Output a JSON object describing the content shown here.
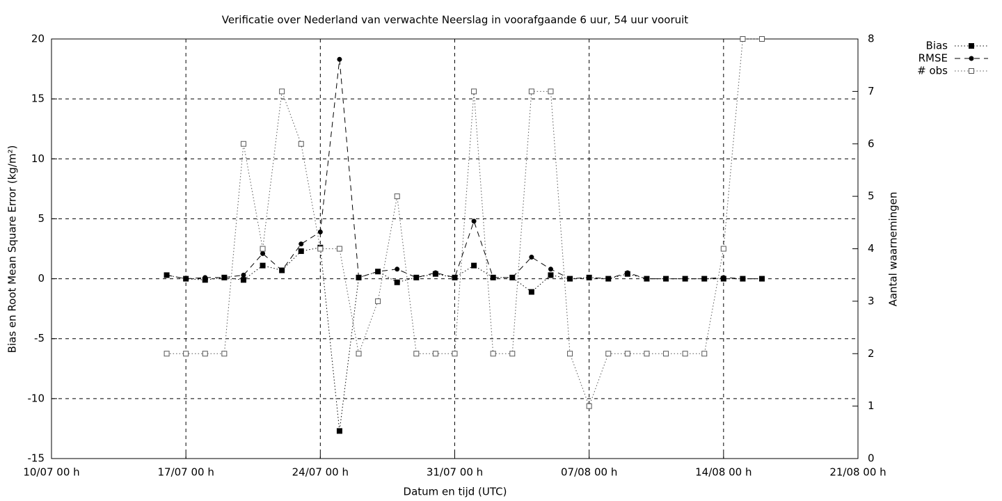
{
  "chart_data": {
    "type": "line",
    "title": "Verificatie over Nederland van verwachte Neerslag in voorafgaande 6 uur, 54 uur vooruit",
    "xlabel": "Datum en tijd (UTC)",
    "ylabel": "Bias en Root Mean Square Error (kg/m²)",
    "y2label": "Aantal waarnemingen",
    "x": [
      "16/07 00 h",
      "17/07 00 h",
      "18/07 00 h",
      "19/07 00 h",
      "20/07 00 h",
      "21/07 00 h",
      "22/07 00 h",
      "23/07 00 h",
      "24/07 00 h",
      "25/07 00 h",
      "26/07 00 h",
      "27/07 00 h",
      "28/07 00 h",
      "29/07 00 h",
      "30/07 00 h",
      "31/07 00 h",
      "01/08 00 h",
      "02/08 00 h",
      "03/08 00 h",
      "04/08 00 h",
      "05/08 00 h",
      "06/08 00 h",
      "07/08 00 h",
      "08/08 00 h",
      "09/08 00 h",
      "10/08 00 h",
      "11/08 00 h",
      "12/08 00 h",
      "13/08 00 h",
      "14/08 00 h",
      "15/08 00 h",
      "16/08 00 h"
    ],
    "xlim": [
      "10/07 00 h",
      "21/08 00 h"
    ],
    "xticks": [
      "10/07 00 h",
      "17/07 00 h",
      "24/07 00 h",
      "31/07 00 h",
      "07/08 00 h",
      "14/08 00 h",
      "21/08 00 h"
    ],
    "ylim": [
      -15,
      20
    ],
    "yticks": [
      -15,
      -10,
      -5,
      0,
      5,
      10,
      15,
      20
    ],
    "y2lim": [
      0,
      8
    ],
    "y2ticks": [
      0,
      1,
      2,
      3,
      4,
      5,
      6,
      7,
      8
    ],
    "grid": true,
    "legend": "outside-top-right",
    "series": [
      {
        "name": "Bias",
        "color": "#000000",
        "line": "dotted",
        "marker": "filled-square",
        "values": [
          0.3,
          0,
          -0.1,
          0.1,
          -0.1,
          1.1,
          0.7,
          2.3,
          2.6,
          -12.7,
          0.1,
          0.6,
          -0.3,
          0.1,
          0.4,
          0.1,
          1.1,
          0.1,
          0.1,
          -1.1,
          0.3,
          0,
          0.1,
          0,
          0.4,
          0,
          0,
          0,
          0,
          0,
          0,
          0
        ]
      },
      {
        "name": "RMSE",
        "color": "#000000",
        "line": "dashed",
        "marker": "circle",
        "values": [
          0.3,
          0,
          0.1,
          0.1,
          0.3,
          2.1,
          0.7,
          2.9,
          3.9,
          18.3,
          0.1,
          0.6,
          0.8,
          0.1,
          0.5,
          0.1,
          4.8,
          0.1,
          0.1,
          1.8,
          0.8,
          0,
          0.1,
          0,
          0.5,
          0,
          0,
          0,
          0,
          0.1,
          0,
          0
        ]
      },
      {
        "name": "# obs",
        "color": "#555555",
        "line": "dotted",
        "marker": "open-square",
        "axis": "y2",
        "values": [
          2,
          2,
          2,
          2,
          6,
          4,
          7,
          6,
          4,
          4,
          2,
          3,
          5,
          2,
          2,
          2,
          7,
          2,
          2,
          7,
          7,
          2,
          1,
          2,
          2,
          2,
          2,
          2,
          2,
          4,
          8,
          8
        ]
      }
    ]
  }
}
